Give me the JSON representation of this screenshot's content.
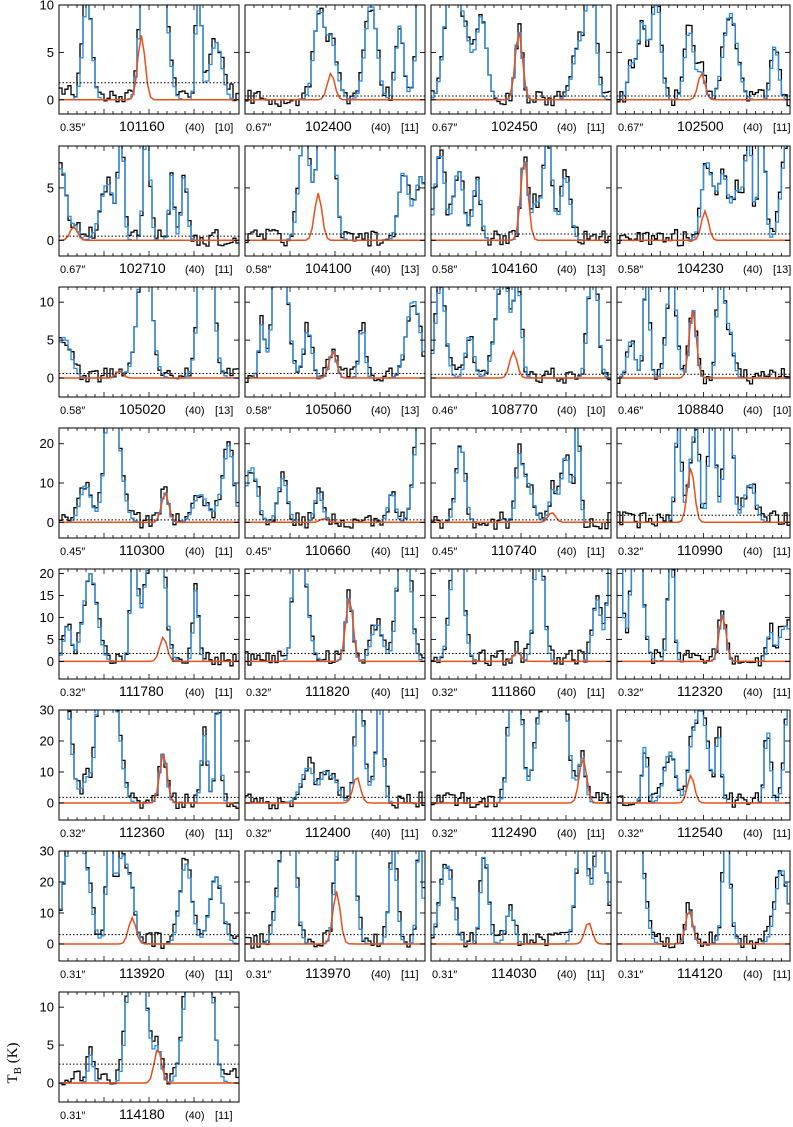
{
  "ylabel": "T_B (K)",
  "colors": {
    "observed": "#000000",
    "model_total": "#2b8ce0",
    "model_species": "#e8501a",
    "threshold": "#000000"
  },
  "chart_data": {
    "type": "line",
    "layout": "grid of spectrum panels",
    "ylabel": "T_B (K)",
    "rows": [
      {
        "ylim": [
          -1.5,
          10
        ],
        "yticks": [
          0,
          5,
          10
        ]
      },
      {
        "ylim": [
          -1.5,
          9
        ],
        "yticks": [
          0,
          5
        ]
      },
      {
        "ylim": [
          -2.5,
          12
        ],
        "yticks": [
          0,
          5,
          10
        ]
      },
      {
        "ylim": [
          -4,
          24
        ],
        "yticks": [
          0,
          10,
          20
        ]
      },
      {
        "ylim": [
          -4,
          21
        ],
        "yticks": [
          0,
          5,
          10,
          15,
          20
        ]
      },
      {
        "ylim": [
          -5.5,
          30
        ],
        "yticks": [
          0,
          10,
          20,
          30
        ]
      },
      {
        "ylim": [
          -5.5,
          30
        ],
        "yticks": [
          0,
          10,
          20,
          30
        ]
      },
      {
        "ylim": [
          -2.5,
          12
        ],
        "yticks": [
          0,
          5,
          10
        ]
      }
    ],
    "panels": [
      {
        "row": 0,
        "col": 0,
        "freq": "101160",
        "beam": "0.35″",
        "a": "(40)",
        "b": "[10]",
        "thr": 1.8,
        "peak": 6.8,
        "pos": 0.45
      },
      {
        "row": 0,
        "col": 1,
        "freq": "102400",
        "beam": "0.67″",
        "a": "(40)",
        "b": "[11]",
        "thr": 0.4,
        "peak": 2.8,
        "pos": 0.47
      },
      {
        "row": 0,
        "col": 2,
        "freq": "102450",
        "beam": "0.67″",
        "a": "(40)",
        "b": "[11]",
        "thr": 0.4,
        "peak": 7.2,
        "pos": 0.48
      },
      {
        "row": 0,
        "col": 3,
        "freq": "102500",
        "beam": "0.67″",
        "a": "(40)",
        "b": "[11]",
        "thr": 0.4,
        "peak": 2.8,
        "pos": 0.48
      },
      {
        "row": 1,
        "col": 0,
        "freq": "102710",
        "beam": "0.67″",
        "a": "(40)",
        "b": "[11]",
        "thr": 0.4,
        "peak": 1.3,
        "pos": 0.08
      },
      {
        "row": 1,
        "col": 1,
        "freq": "104100",
        "beam": "0.58″",
        "a": "(40)",
        "b": "[13]",
        "thr": 0.6,
        "peak": 4.5,
        "pos": 0.4
      },
      {
        "row": 1,
        "col": 2,
        "freq": "104160",
        "beam": "0.58″",
        "a": "(40)",
        "b": "[13]",
        "thr": 0.6,
        "peak": 7.8,
        "pos": 0.51
      },
      {
        "row": 1,
        "col": 3,
        "freq": "104230",
        "beam": "0.58″",
        "a": "(40)",
        "b": "[13]",
        "thr": 0.6,
        "peak": 2.8,
        "pos": 0.5
      },
      {
        "row": 2,
        "col": 0,
        "freq": "105020",
        "beam": "0.58″",
        "a": "(40)",
        "b": "[13]",
        "thr": 0.6,
        "peak": 0.9,
        "pos": 0.33
      },
      {
        "row": 2,
        "col": 1,
        "freq": "105060",
        "beam": "0.58″",
        "a": "(40)",
        "b": "[13]",
        "thr": 0.6,
        "peak": 3.5,
        "pos": 0.48
      },
      {
        "row": 2,
        "col": 2,
        "freq": "108770",
        "beam": "0.46″",
        "a": "(40)",
        "b": "[10]",
        "thr": 0.5,
        "peak": 3.5,
        "pos": 0.45
      },
      {
        "row": 2,
        "col": 3,
        "freq": "108840",
        "beam": "0.46″",
        "a": "(40)",
        "b": "[10]",
        "thr": 0.5,
        "peak": 9.0,
        "pos": 0.43
      },
      {
        "row": 3,
        "col": 0,
        "freq": "110300",
        "beam": "0.45″",
        "a": "(40)",
        "b": "[11]",
        "thr": 0.6,
        "peak": 7.5,
        "pos": 0.58
      },
      {
        "row": 3,
        "col": 1,
        "freq": "110660",
        "beam": "0.45″",
        "a": "(40)",
        "b": "[11]",
        "thr": 0.6,
        "peak": 0.9,
        "pos": 0.43
      },
      {
        "row": 3,
        "col": 2,
        "freq": "110740",
        "beam": "0.45″",
        "a": "(40)",
        "b": "[11]",
        "thr": 0.6,
        "peak": 2.5,
        "pos": 0.66
      },
      {
        "row": 3,
        "col": 3,
        "freq": "110990",
        "beam": "0.32″",
        "a": "(40)",
        "b": "[11]",
        "thr": 1.8,
        "peak": 14,
        "pos": 0.42
      },
      {
        "row": 4,
        "col": 0,
        "freq": "111780",
        "beam": "0.32″",
        "a": "(40)",
        "b": "[11]",
        "thr": 1.8,
        "peak": 5.5,
        "pos": 0.57
      },
      {
        "row": 4,
        "col": 1,
        "freq": "111820",
        "beam": "0.32″",
        "a": "(40)",
        "b": "[11]",
        "thr": 1.8,
        "peak": 14.5,
        "pos": 0.57
      },
      {
        "row": 4,
        "col": 2,
        "freq": "111860",
        "beam": "0.32″",
        "a": "(40)",
        "b": "[11]",
        "thr": 1.8,
        "peak": 2.2,
        "pos": 0.47
      },
      {
        "row": 4,
        "col": 3,
        "freq": "112320",
        "beam": "0.32″",
        "a": "(40)",
        "b": "[11]",
        "thr": 1.8,
        "peak": 10.5,
        "pos": 0.6
      },
      {
        "row": 5,
        "col": 0,
        "freq": "112360",
        "beam": "0.32″",
        "a": "(40)",
        "b": "[11]",
        "thr": 1.8,
        "peak": 16,
        "pos": 0.57
      },
      {
        "row": 5,
        "col": 1,
        "freq": "112400",
        "beam": "0.32″",
        "a": "(40)",
        "b": "[11]",
        "thr": 1.8,
        "peak": 8.5,
        "pos": 0.61
      },
      {
        "row": 5,
        "col": 2,
        "freq": "112490",
        "beam": "0.32″",
        "a": "(40)",
        "b": "[11]",
        "thr": 1.8,
        "peak": 14.5,
        "pos": 0.83
      },
      {
        "row": 5,
        "col": 3,
        "freq": "112540",
        "beam": "0.32″",
        "a": "(40)",
        "b": "[11]",
        "thr": 1.8,
        "peak": 9,
        "pos": 0.42
      },
      {
        "row": 6,
        "col": 0,
        "freq": "113920",
        "beam": "0.31″",
        "a": "(40)",
        "b": "[11]",
        "thr": 3,
        "peak": 8.5,
        "pos": 0.4
      },
      {
        "row": 6,
        "col": 1,
        "freq": "113970",
        "beam": "0.31″",
        "a": "(40)",
        "b": "[11]",
        "thr": 3,
        "peak": 17,
        "pos": 0.5
      },
      {
        "row": 6,
        "col": 2,
        "freq": "114030",
        "beam": "0.31″",
        "a": "(40)",
        "b": "[11]",
        "thr": 3,
        "peak": 7,
        "pos": 0.86
      },
      {
        "row": 6,
        "col": 3,
        "freq": "114120",
        "beam": "0.31″",
        "a": "(40)",
        "b": "[11]",
        "thr": 3,
        "peak": 11,
        "pos": 0.41
      },
      {
        "row": 7,
        "col": 0,
        "freq": "114180",
        "beam": "0.31″",
        "a": "(40)",
        "b": "[11]",
        "thr": 2.5,
        "peak": 4.5,
        "pos": 0.54
      }
    ]
  }
}
